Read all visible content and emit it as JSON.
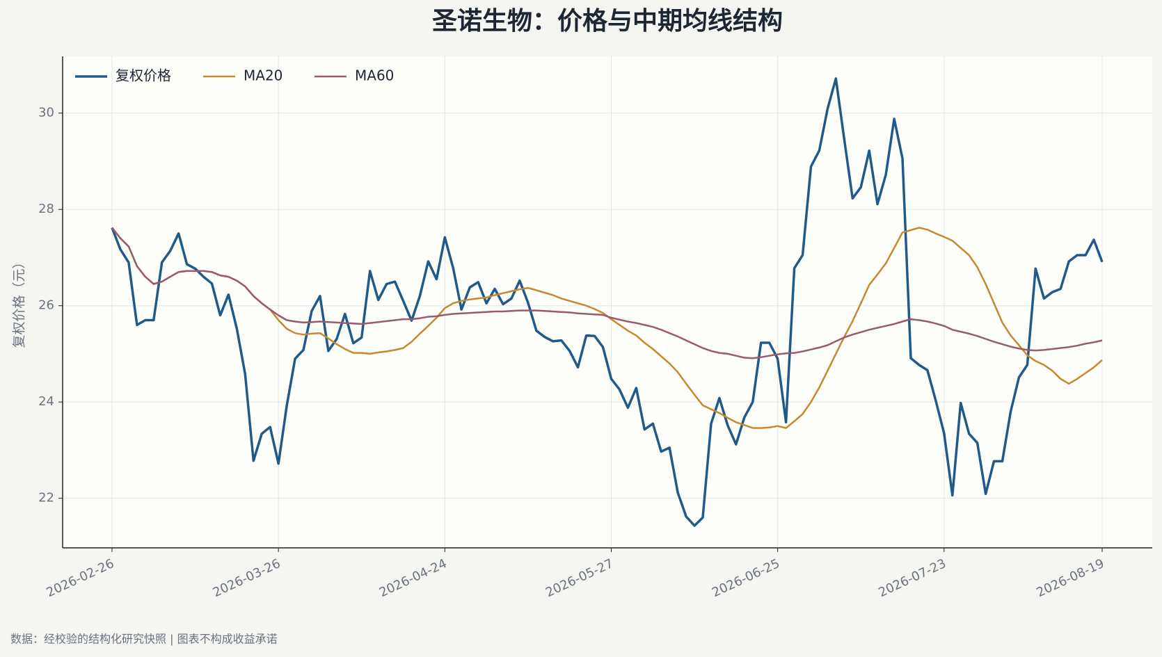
{
  "chart_data": {
    "type": "line",
    "title": "圣诺生物：价格与中期均线结构",
    "y_label": "复权价格（元）",
    "source_note": "数据：经校验的结构化研究快照 | 图表不构成收益承诺",
    "x": [
      "2026-02-26",
      "2026-02-27",
      "2026-03-02",
      "2026-03-03",
      "2026-03-04",
      "2026-03-05",
      "2026-03-06",
      "2026-03-09",
      "2026-03-10",
      "2026-03-11",
      "2026-03-12",
      "2026-03-13",
      "2026-03-16",
      "2026-03-17",
      "2026-03-18",
      "2026-03-19",
      "2026-03-20",
      "2026-03-23",
      "2026-03-24",
      "2026-03-25",
      "2026-03-26",
      "2026-03-27",
      "2026-03-30",
      "2026-03-31",
      "2026-04-01",
      "2026-04-02",
      "2026-04-03",
      "2026-04-07",
      "2026-04-08",
      "2026-04-09",
      "2026-04-10",
      "2026-04-13",
      "2026-04-14",
      "2026-04-15",
      "2026-04-16",
      "2026-04-17",
      "2026-04-20",
      "2026-04-21",
      "2026-04-22",
      "2026-04-23",
      "2026-04-24",
      "2026-04-27",
      "2026-04-28",
      "2026-04-29",
      "2026-04-30",
      "2026-05-06",
      "2026-05-07",
      "2026-05-08",
      "2026-05-11",
      "2026-05-12",
      "2026-05-13",
      "2026-05-14",
      "2026-05-15",
      "2026-05-18",
      "2026-05-19",
      "2026-05-20",
      "2026-05-21",
      "2026-05-22",
      "2026-05-25",
      "2026-05-26",
      "2026-05-27",
      "2026-05-28",
      "2026-05-29",
      "2026-06-01",
      "2026-06-02",
      "2026-06-03",
      "2026-06-04",
      "2026-06-05",
      "2026-06-08",
      "2026-06-09",
      "2026-06-10",
      "2026-06-11",
      "2026-06-12",
      "2026-06-15",
      "2026-06-16",
      "2026-06-17",
      "2026-06-18",
      "2026-06-22",
      "2026-06-23",
      "2026-06-24",
      "2026-06-25",
      "2026-06-26",
      "2026-06-29",
      "2026-06-30",
      "2026-07-01",
      "2026-07-02",
      "2026-07-03",
      "2026-07-06",
      "2026-07-07",
      "2026-07-08",
      "2026-07-09",
      "2026-07-10",
      "2026-07-13",
      "2026-07-14",
      "2026-07-15",
      "2026-07-16",
      "2026-07-17",
      "2026-07-20",
      "2026-07-21",
      "2026-07-22",
      "2026-07-23",
      "2026-07-24",
      "2026-07-27",
      "2026-07-28",
      "2026-07-29",
      "2026-07-30",
      "2026-07-31",
      "2026-08-03",
      "2026-08-04",
      "2026-08-05",
      "2026-08-06",
      "2026-08-07",
      "2026-08-10",
      "2026-08-11",
      "2026-08-12",
      "2026-08-13",
      "2026-08-14",
      "2026-08-17",
      "2026-08-18",
      "2026-08-19"
    ],
    "xticks": [
      "2026-02-26",
      "2026-03-26",
      "2026-04-24",
      "2026-05-27",
      "2026-06-25",
      "2026-07-23",
      "2026-08-19"
    ],
    "series": [
      {
        "name": "复权价格",
        "color": "#1f5a8a",
        "width": 3.5,
        "values": [
          27.62,
          27.17,
          26.9,
          25.6,
          25.7,
          25.7,
          26.9,
          27.14,
          27.5,
          26.86,
          26.77,
          26.6,
          26.46,
          25.8,
          26.23,
          25.52,
          24.58,
          22.78,
          23.34,
          23.48,
          22.72,
          23.92,
          24.9,
          25.08,
          25.89,
          26.2,
          25.06,
          25.31,
          25.83,
          25.22,
          25.34,
          26.72,
          26.12,
          26.45,
          26.5,
          26.1,
          25.69,
          26.2,
          26.92,
          26.55,
          27.42,
          26.78,
          25.92,
          26.38,
          26.49,
          26.05,
          26.35,
          26.03,
          26.15,
          26.52,
          26.06,
          25.48,
          25.35,
          25.26,
          25.28,
          25.06,
          24.72,
          25.38,
          25.37,
          25.14,
          24.48,
          24.26,
          23.88,
          24.29,
          23.43,
          23.55,
          22.97,
          23.05,
          22.12,
          21.62,
          21.43,
          21.6,
          23.55,
          24.08,
          23.51,
          23.12,
          23.68,
          24.0,
          25.23,
          25.23,
          24.9,
          23.58,
          26.78,
          27.05,
          28.89,
          29.22,
          30.09,
          30.72,
          29.46,
          28.23,
          28.46,
          29.22,
          28.11,
          28.72,
          29.88,
          29.06,
          24.91,
          24.77,
          24.66,
          24.03,
          23.35,
          22.06,
          23.98,
          23.34,
          23.15,
          22.09,
          22.77,
          22.77,
          23.8,
          24.51,
          24.77,
          26.77,
          26.15,
          26.28,
          26.35,
          26.92,
          27.05,
          27.05,
          27.37,
          26.91
        ]
      },
      {
        "name": "MA20",
        "color": "#c8882e",
        "width": 2.5,
        "values": [
          27.62,
          27.4,
          27.23,
          26.82,
          26.6,
          26.45,
          26.5,
          26.6,
          26.7,
          26.72,
          26.72,
          26.72,
          26.7,
          26.63,
          26.6,
          26.52,
          26.4,
          26.2,
          26.05,
          25.92,
          25.7,
          25.52,
          25.43,
          25.4,
          25.42,
          25.43,
          25.32,
          25.2,
          25.1,
          25.02,
          25.02,
          25.0,
          25.03,
          25.05,
          25.08,
          25.12,
          25.25,
          25.42,
          25.58,
          25.75,
          25.95,
          26.05,
          26.1,
          26.13,
          26.15,
          26.17,
          26.22,
          26.26,
          26.3,
          26.34,
          26.37,
          26.32,
          26.27,
          26.22,
          26.15,
          26.1,
          26.05,
          26.0,
          25.93,
          25.85,
          25.72,
          25.6,
          25.48,
          25.38,
          25.23,
          25.1,
          24.95,
          24.8,
          24.62,
          24.38,
          24.15,
          23.93,
          23.85,
          23.77,
          23.67,
          23.58,
          23.52,
          23.46,
          23.46,
          23.47,
          23.5,
          23.46,
          23.6,
          23.75,
          24.0,
          24.3,
          24.65,
          25.0,
          25.35,
          25.68,
          26.05,
          26.43,
          26.65,
          26.88,
          27.2,
          27.52,
          27.57,
          27.62,
          27.58,
          27.5,
          27.43,
          27.35,
          27.2,
          27.05,
          26.8,
          26.45,
          26.05,
          25.65,
          25.38,
          25.18,
          24.97,
          24.85,
          24.77,
          24.65,
          24.48,
          24.38,
          24.48,
          24.6,
          24.72,
          24.87
        ]
      },
      {
        "name": "MA60",
        "color": "#9a5a6e",
        "width": 2.5,
        "values": [
          27.62,
          27.4,
          27.23,
          26.82,
          26.6,
          26.45,
          26.5,
          26.6,
          26.7,
          26.72,
          26.72,
          26.72,
          26.7,
          26.63,
          26.6,
          26.52,
          26.4,
          26.2,
          26.05,
          25.92,
          25.8,
          25.7,
          25.67,
          25.65,
          25.66,
          25.67,
          25.66,
          25.65,
          25.64,
          25.63,
          25.62,
          25.64,
          25.66,
          25.68,
          25.7,
          25.72,
          25.72,
          25.74,
          25.77,
          25.78,
          25.81,
          25.83,
          25.84,
          25.85,
          25.86,
          25.87,
          25.88,
          25.88,
          25.89,
          25.9,
          25.9,
          25.9,
          25.89,
          25.88,
          25.87,
          25.86,
          25.84,
          25.83,
          25.82,
          25.81,
          25.75,
          25.71,
          25.67,
          25.64,
          25.6,
          25.56,
          25.5,
          25.43,
          25.36,
          25.28,
          25.2,
          25.12,
          25.06,
          25.02,
          25.0,
          24.96,
          24.92,
          24.91,
          24.93,
          24.96,
          24.99,
          25.01,
          25.02,
          25.05,
          25.09,
          25.13,
          25.18,
          25.26,
          25.34,
          25.4,
          25.45,
          25.5,
          25.54,
          25.58,
          25.62,
          25.67,
          25.72,
          25.7,
          25.67,
          25.63,
          25.58,
          25.5,
          25.46,
          25.42,
          25.37,
          25.31,
          25.25,
          25.2,
          25.15,
          25.11,
          25.08,
          25.07,
          25.08,
          25.1,
          25.12,
          25.14,
          25.17,
          25.21,
          25.24,
          25.28
        ]
      }
    ],
    "ylim": [
      20.97,
      31.18
    ],
    "yticks": [
      22,
      24,
      26,
      28,
      30
    ],
    "grid": true,
    "legend": "upper left"
  }
}
